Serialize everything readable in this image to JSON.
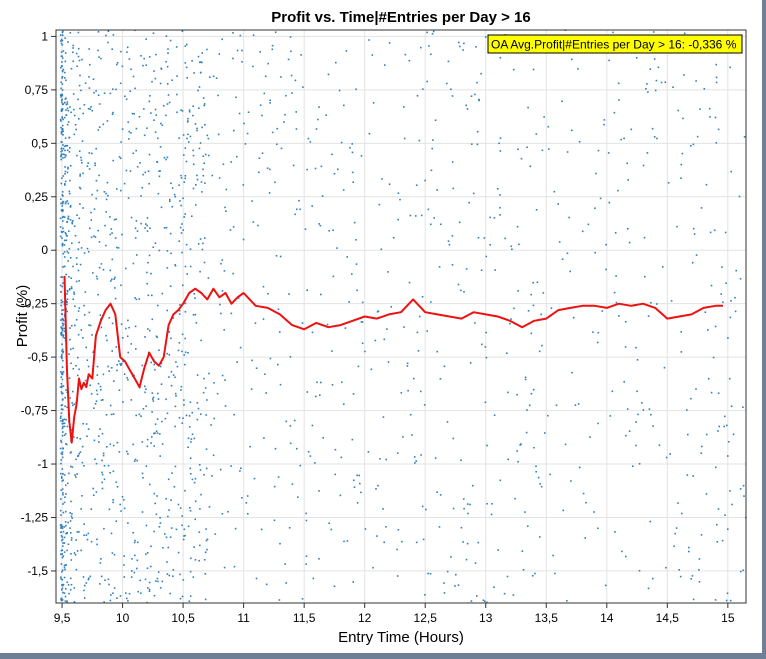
{
  "chart_data": {
    "type": "scatter",
    "title": "Profit vs. Time|#Entries per Day > 16",
    "xlabel": "Entry Time (Hours)",
    "ylabel": "Profit (%)",
    "xlim": [
      9.45,
      15.15
    ],
    "ylim": [
      -1.65,
      1.03
    ],
    "x_ticks": [
      "9,5",
      "10",
      "10,5",
      "11",
      "11,5",
      "12",
      "12,5",
      "13",
      "13,5",
      "14",
      "14,5",
      "15"
    ],
    "x_tick_values": [
      9.5,
      10,
      10.5,
      11,
      11.5,
      12,
      12.5,
      13,
      13.5,
      14,
      14.5,
      15
    ],
    "y_ticks": [
      "1",
      "0,75",
      "0,5",
      "0,25",
      "0",
      "-0,25",
      "-0,5",
      "-0,75",
      "-1",
      "-1,25",
      "-1,5"
    ],
    "y_tick_values": [
      1,
      0.75,
      0.5,
      0.25,
      0,
      -0.25,
      -0.5,
      -0.75,
      -1,
      -1.25,
      -1.5
    ],
    "grid": true,
    "annotation": "OA Avg.Profit|#Entries per Day > 16: -0,336 %",
    "annotation_placement": "top-right",
    "colors": {
      "points": "#2f7fbf",
      "line": "#ee1111",
      "annotation_bg": "#ffff00"
    },
    "series": [
      {
        "type": "line",
        "x": [
          9.52,
          9.54,
          9.56,
          9.58,
          9.6,
          9.62,
          9.64,
          9.66,
          9.68,
          9.7,
          9.72,
          9.75,
          9.78,
          9.82,
          9.86,
          9.9,
          9.94,
          9.98,
          10.02,
          10.06,
          10.1,
          10.14,
          10.18,
          10.22,
          10.26,
          10.3,
          10.34,
          10.38,
          10.42,
          10.46,
          10.5,
          10.55,
          10.6,
          10.65,
          10.7,
          10.75,
          10.8,
          10.85,
          10.9,
          10.95,
          11.0,
          11.1,
          11.2,
          11.3,
          11.4,
          11.5,
          11.6,
          11.7,
          11.8,
          11.9,
          12.0,
          12.1,
          12.2,
          12.3,
          12.4,
          12.5,
          12.6,
          12.7,
          12.8,
          12.9,
          13.0,
          13.1,
          13.2,
          13.3,
          13.4,
          13.5,
          13.6,
          13.7,
          13.8,
          13.9,
          14.0,
          14.1,
          14.2,
          14.3,
          14.4,
          14.5,
          14.6,
          14.7,
          14.8,
          14.9,
          14.96
        ],
        "y": [
          -0.12,
          -0.55,
          -0.8,
          -0.9,
          -0.78,
          -0.72,
          -0.6,
          -0.65,
          -0.62,
          -0.64,
          -0.58,
          -0.6,
          -0.4,
          -0.33,
          -0.28,
          -0.25,
          -0.3,
          -0.5,
          -0.52,
          -0.56,
          -0.6,
          -0.64,
          -0.55,
          -0.48,
          -0.52,
          -0.54,
          -0.5,
          -0.35,
          -0.3,
          -0.28,
          -0.25,
          -0.2,
          -0.18,
          -0.2,
          -0.23,
          -0.18,
          -0.22,
          -0.2,
          -0.25,
          -0.22,
          -0.2,
          -0.26,
          -0.27,
          -0.3,
          -0.35,
          -0.37,
          -0.34,
          -0.36,
          -0.35,
          -0.33,
          -0.31,
          -0.32,
          -0.3,
          -0.29,
          -0.23,
          -0.29,
          -0.3,
          -0.31,
          -0.32,
          -0.29,
          -0.3,
          -0.31,
          -0.33,
          -0.36,
          -0.33,
          -0.32,
          -0.28,
          -0.27,
          -0.26,
          -0.26,
          -0.27,
          -0.25,
          -0.26,
          -0.25,
          -0.27,
          -0.32,
          -0.31,
          -0.3,
          -0.27,
          -0.26,
          -0.26
        ]
      }
    ]
  }
}
